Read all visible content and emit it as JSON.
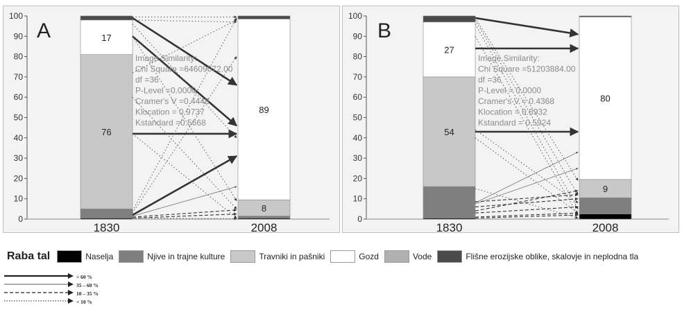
{
  "legend": {
    "title": "Raba tal",
    "items": [
      {
        "label": "Naselja",
        "color": "#000000"
      },
      {
        "label": "Njive in trajne kulture",
        "color": "#7f7f7f"
      },
      {
        "label": "Travniki in pašniki",
        "color": "#c8c8c8"
      },
      {
        "label": "Gozd",
        "color": "#ffffff"
      },
      {
        "label": "Vode",
        "color": "#b0b0b0"
      },
      {
        "label": "Flišne erozijske oblike, skalovje in neplodna tla",
        "color": "#4a4a4a"
      }
    ]
  },
  "arrow_legend": [
    {
      "label": "> 60 %",
      "style": "bold"
    },
    {
      "label": "35 – 60 %",
      "style": "thin"
    },
    {
      "label": "10 – 35 %",
      "style": "dashed"
    },
    {
      "label": "< 10 %",
      "style": "dotted"
    }
  ],
  "chart_data": [
    {
      "type": "bar",
      "panel_label": "A",
      "categories": [
        "1830",
        "2008"
      ],
      "ylim": [
        0,
        100
      ],
      "yticks": [
        0,
        10,
        20,
        30,
        40,
        50,
        60,
        70,
        80,
        90,
        100
      ],
      "bars": [
        {
          "year": "1830",
          "segments": [
            {
              "class": "Naselja",
              "value": 0.5,
              "color": "#000000"
            },
            {
              "class": "Njive in trajne kulture",
              "value": 4.5,
              "color": "#7f7f7f"
            },
            {
              "class": "Travniki in pašniki",
              "value": 76,
              "color": "#c8c8c8",
              "label": "76"
            },
            {
              "class": "Gozd",
              "value": 17,
              "color": "#ffffff",
              "label": "17"
            },
            {
              "class": "Flišne erozijske oblike, skalovje in neplodna tla",
              "value": 2,
              "color": "#4a4a4a"
            }
          ]
        },
        {
          "year": "2008",
          "segments": [
            {
              "class": "Naselja",
              "value": 0.5,
              "color": "#000000"
            },
            {
              "class": "Njive in trajne kulture",
              "value": 1,
              "color": "#7f7f7f"
            },
            {
              "class": "Travniki in pašniki",
              "value": 8,
              "color": "#c8c8c8",
              "label": "8"
            },
            {
              "class": "Gozd",
              "value": 89,
              "color": "#ffffff",
              "label": "89"
            },
            {
              "class": "Flišne erozijske oblike, skalovje in neplodna tla",
              "value": 1.5,
              "color": "#4a4a4a"
            }
          ]
        }
      ],
      "statistics": [
        "Image Similarity:",
        "Chi Square =64609072.00",
        "df =36",
        "P-Level =0.0000",
        "Cramer's V =0.4448",
        "Klocation = 0.9737",
        "Kstandard =0.5668"
      ],
      "flows": [
        {
          "from": 99,
          "to": 66,
          "style": "bold"
        },
        {
          "from": 90,
          "to": 46,
          "style": "bold"
        },
        {
          "from": 42,
          "to": 42,
          "style": "bold"
        },
        {
          "from": 2,
          "to": 31,
          "style": "bold"
        },
        {
          "from": 1.5,
          "to": 16,
          "style": "thin"
        },
        {
          "from": 1,
          "to": 4.5,
          "style": "dashed"
        },
        {
          "from": 0.5,
          "to": 2.5,
          "style": "dashed"
        },
        {
          "from": 99.5,
          "to": 99.5,
          "style": "dotted"
        },
        {
          "from": 98,
          "to": 97,
          "style": "dotted"
        },
        {
          "from": 96,
          "to": 40,
          "style": "dotted"
        },
        {
          "from": 90,
          "to": 9,
          "style": "dotted"
        },
        {
          "from": 72,
          "to": 98,
          "style": "dotted"
        },
        {
          "from": 60,
          "to": 5,
          "style": "dotted"
        },
        {
          "from": 42,
          "to": 0.5,
          "style": "dotted"
        },
        {
          "from": 4,
          "to": 99,
          "style": "dotted"
        },
        {
          "from": 3,
          "to": 80,
          "style": "dotted"
        },
        {
          "from": 0.5,
          "to": 0.2,
          "style": "dotted"
        }
      ]
    },
    {
      "type": "bar",
      "panel_label": "B",
      "categories": [
        "1830",
        "2008"
      ],
      "ylim": [
        0,
        100
      ],
      "yticks": [
        0,
        10,
        20,
        30,
        40,
        50,
        60,
        70,
        80,
        90,
        100
      ],
      "bars": [
        {
          "year": "1830",
          "segments": [
            {
              "class": "Naselja",
              "value": 0.5,
              "color": "#000000"
            },
            {
              "class": "Njive in trajne kulture",
              "value": 15.5,
              "color": "#7f7f7f"
            },
            {
              "class": "Travniki in pašniki",
              "value": 54,
              "color": "#c8c8c8",
              "label": "54"
            },
            {
              "class": "Gozd",
              "value": 27,
              "color": "#ffffff",
              "label": "27"
            },
            {
              "class": "Flišne erozijske oblike, skalovje in neplodna tla",
              "value": 3,
              "color": "#4a4a4a"
            }
          ]
        },
        {
          "year": "2008",
          "segments": [
            {
              "class": "Naselja",
              "value": 2.5,
              "color": "#000000"
            },
            {
              "class": "Njive in trajne kulture",
              "value": 8,
              "color": "#7f7f7f"
            },
            {
              "class": "Travniki in pašniki",
              "value": 9,
              "color": "#c8c8c8",
              "label": "9"
            },
            {
              "class": "Gozd",
              "value": 80,
              "color": "#ffffff",
              "label": "80"
            },
            {
              "class": "Flišne erozijske oblike, skalovje in neplodna tla",
              "value": 0.5,
              "color": "#4a4a4a"
            }
          ]
        }
      ],
      "statistics": [
        "Image Similarity:",
        "Chi Square =51203884.00",
        "df =36",
        "P-Level = 0.0000",
        "Cramer's V = 0.4368",
        "Klocation = 0.8932",
        "Kstandard = 0.5924"
      ],
      "flows": [
        {
          "from": 99,
          "to": 91,
          "style": "bold"
        },
        {
          "from": 84,
          "to": 84,
          "style": "bold"
        },
        {
          "from": 43,
          "to": 43,
          "style": "bold"
        },
        {
          "from": 8,
          "to": 33,
          "style": "thin"
        },
        {
          "from": 7.5,
          "to": 25,
          "style": "thin"
        },
        {
          "from": 8.5,
          "to": 12,
          "style": "dashed"
        },
        {
          "from": 6,
          "to": 10,
          "style": "dashed"
        },
        {
          "from": 4,
          "to": 14,
          "style": "dashed"
        },
        {
          "from": 3,
          "to": 6,
          "style": "dashed"
        },
        {
          "from": 1,
          "to": 3,
          "style": "dashed"
        },
        {
          "from": 0.5,
          "to": 2,
          "style": "dashed"
        },
        {
          "from": 99,
          "to": 19,
          "style": "dotted"
        },
        {
          "from": 98,
          "to": 12,
          "style": "dotted"
        },
        {
          "from": 96,
          "to": 5,
          "style": "dotted"
        },
        {
          "from": 90,
          "to": 2,
          "style": "dotted"
        },
        {
          "from": 44,
          "to": 8,
          "style": "dotted"
        },
        {
          "from": 40,
          "to": 3,
          "style": "dotted"
        },
        {
          "from": 15,
          "to": 0.5,
          "style": "dotted"
        }
      ]
    }
  ]
}
